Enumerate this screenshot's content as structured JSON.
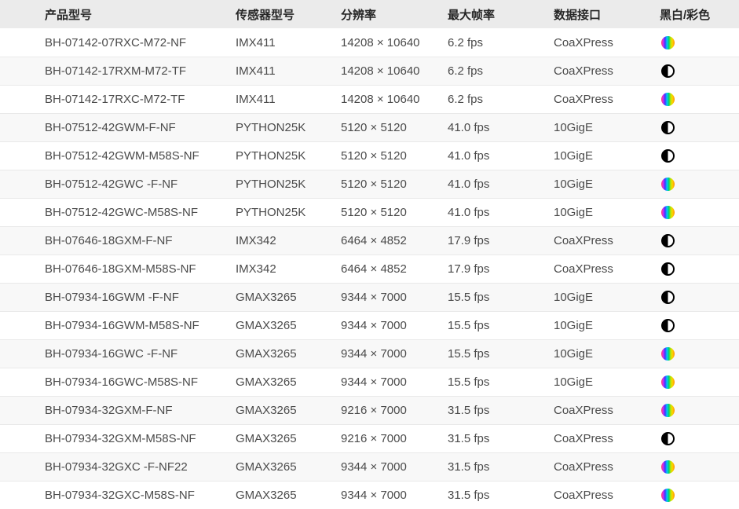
{
  "table": {
    "columns": [
      {
        "key": "model",
        "label": "产品型号"
      },
      {
        "key": "sensor",
        "label": "传感器型号"
      },
      {
        "key": "resolution",
        "label": "分辨率"
      },
      {
        "key": "fps",
        "label": "最大帧率"
      },
      {
        "key": "interface",
        "label": "数据接口"
      },
      {
        "key": "chroma",
        "label": "黑白/彩色"
      }
    ],
    "rows": [
      {
        "model": "BH-07142-07RXC-M72-NF",
        "sensor": "IMX411",
        "resolution": "14208 × 10640",
        "fps": "6.2 fps",
        "interface": "CoaXPress",
        "chroma": "color"
      },
      {
        "model": "BH-07142-17RXM-M72-TF",
        "sensor": "IMX411",
        "resolution": "14208 × 10640",
        "fps": "6.2 fps",
        "interface": "CoaXPress",
        "chroma": "mono"
      },
      {
        "model": "BH-07142-17RXC-M72-TF",
        "sensor": "IMX411",
        "resolution": "14208 × 10640",
        "fps": "6.2 fps",
        "interface": "CoaXPress",
        "chroma": "color"
      },
      {
        "model": "BH-07512-42GWM-F-NF",
        "sensor": "PYTHON25K",
        "resolution": "5120 × 5120",
        "fps": "41.0 fps",
        "interface": "10GigE",
        "chroma": "mono"
      },
      {
        "model": "BH-07512-42GWM-M58S-NF",
        "sensor": "PYTHON25K",
        "resolution": "5120 × 5120",
        "fps": "41.0 fps",
        "interface": "10GigE",
        "chroma": "mono"
      },
      {
        "model": "BH-07512-42GWC -F-NF",
        "sensor": "PYTHON25K",
        "resolution": "5120 × 5120",
        "fps": "41.0 fps",
        "interface": "10GigE",
        "chroma": "color"
      },
      {
        "model": "BH-07512-42GWC-M58S-NF",
        "sensor": "PYTHON25K",
        "resolution": "5120 × 5120",
        "fps": "41.0 fps",
        "interface": "10GigE",
        "chroma": "color"
      },
      {
        "model": "BH-07646-18GXM-F-NF",
        "sensor": "IMX342",
        "resolution": "6464 × 4852",
        "fps": "17.9 fps",
        "interface": "CoaXPress",
        "chroma": "mono"
      },
      {
        "model": "BH-07646-18GXM-M58S-NF",
        "sensor": "IMX342",
        "resolution": "6464 × 4852",
        "fps": "17.9 fps",
        "interface": "CoaXPress",
        "chroma": "mono"
      },
      {
        "model": "BH-07934-16GWM -F-NF",
        "sensor": "GMAX3265",
        "resolution": "9344 × 7000",
        "fps": "15.5 fps",
        "interface": "10GigE",
        "chroma": "mono"
      },
      {
        "model": "BH-07934-16GWM-M58S-NF",
        "sensor": "GMAX3265",
        "resolution": "9344 × 7000",
        "fps": "15.5 fps",
        "interface": "10GigE",
        "chroma": "mono"
      },
      {
        "model": "BH-07934-16GWC -F-NF",
        "sensor": "GMAX3265",
        "resolution": "9344 × 7000",
        "fps": "15.5 fps",
        "interface": "10GigE",
        "chroma": "color"
      },
      {
        "model": "BH-07934-16GWC-M58S-NF",
        "sensor": "GMAX3265",
        "resolution": "9344 × 7000",
        "fps": "15.5 fps",
        "interface": "10GigE",
        "chroma": "color"
      },
      {
        "model": "BH-07934-32GXM-F-NF",
        "sensor": "GMAX3265",
        "resolution": "9216 × 7000",
        "fps": "31.5 fps",
        "interface": "CoaXPress",
        "chroma": "color"
      },
      {
        "model": "BH-07934-32GXM-M58S-NF",
        "sensor": "GMAX3265",
        "resolution": "9216 × 7000",
        "fps": "31.5 fps",
        "interface": "CoaXPress",
        "chroma": "mono"
      },
      {
        "model": "BH-07934-32GXC -F-NF22",
        "sensor": "GMAX3265",
        "resolution": "9344 × 7000",
        "fps": "31.5 fps",
        "interface": "CoaXPress",
        "chroma": "color"
      },
      {
        "model": "BH-07934-32GXC-M58S-NF",
        "sensor": "GMAX3265",
        "resolution": "9344 × 7000",
        "fps": "31.5 fps",
        "interface": "CoaXPress",
        "chroma": "color"
      }
    ],
    "icons": {
      "color": {
        "name": "color-icon",
        "gradient": [
          "#ff3b6b",
          "#d02ff0",
          "#3a3aff",
          "#00c8ff",
          "#00d26a",
          "#c8e600",
          "#ffd000",
          "#ff8a00"
        ]
      },
      "mono": {
        "name": "mono-icon",
        "colors": [
          "#000000",
          "#ffffff"
        ]
      }
    },
    "colors": {
      "header_bg": "#ebebeb",
      "row_bg": "#ffffff",
      "row_alt_bg": "#f8f8f8",
      "row_border": "#e9e9e9",
      "text": "#4a4a4a",
      "header_text": "#262626"
    }
  }
}
